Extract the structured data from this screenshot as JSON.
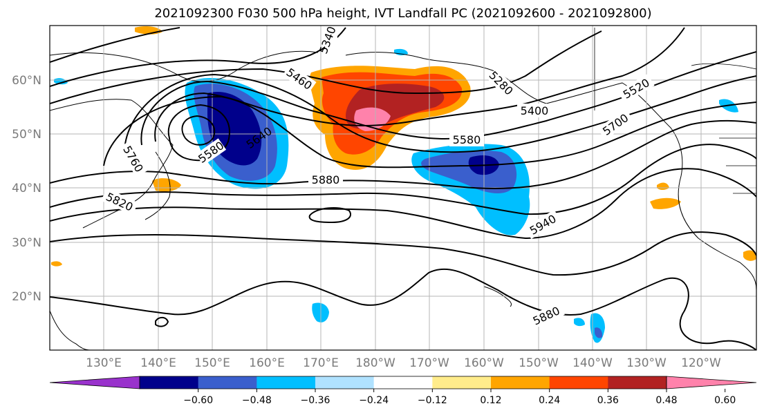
{
  "title": "2021092300 F030 500 hPa height, IVT Landfall PC (2021092600 - 2021092800)",
  "lat_labels": [
    "60°N",
    "50°N",
    "40°N",
    "30°N",
    "20°N"
  ],
  "lon_labels": [
    "130°E",
    "140°E",
    "150°E",
    "160°E",
    "170°E",
    "180°W",
    "170°W",
    "160°W",
    "150°W",
    "140°W",
    "130°W",
    "120°W"
  ],
  "contour_labels": [
    {
      "text": "5340"
    },
    {
      "text": "5460"
    },
    {
      "text": "5400"
    },
    {
      "text": "5520"
    },
    {
      "text": "5580"
    },
    {
      "text": "5640"
    },
    {
      "text": "5700"
    },
    {
      "text": "5760"
    },
    {
      "text": "5820"
    },
    {
      "text": "5880"
    },
    {
      "text": "5940"
    },
    {
      "text": "5880"
    },
    {
      "text": "5580"
    },
    {
      "text": "5280"
    }
  ],
  "colorbar": {
    "ticks": [
      "−0.60",
      "−0.48",
      "−0.36",
      "−0.24",
      "−0.12",
      "0.12",
      "0.24",
      "0.36",
      "0.48",
      "0.60"
    ],
    "colors": [
      "#9932CC",
      "#00008B",
      "#3A5FCD",
      "#00BFFF",
      "#B0E2FF",
      "#FFFFFF",
      "#FFEC8B",
      "#FFA500",
      "#FF4500",
      "#B22222",
      "#FF82AB"
    ]
  }
}
